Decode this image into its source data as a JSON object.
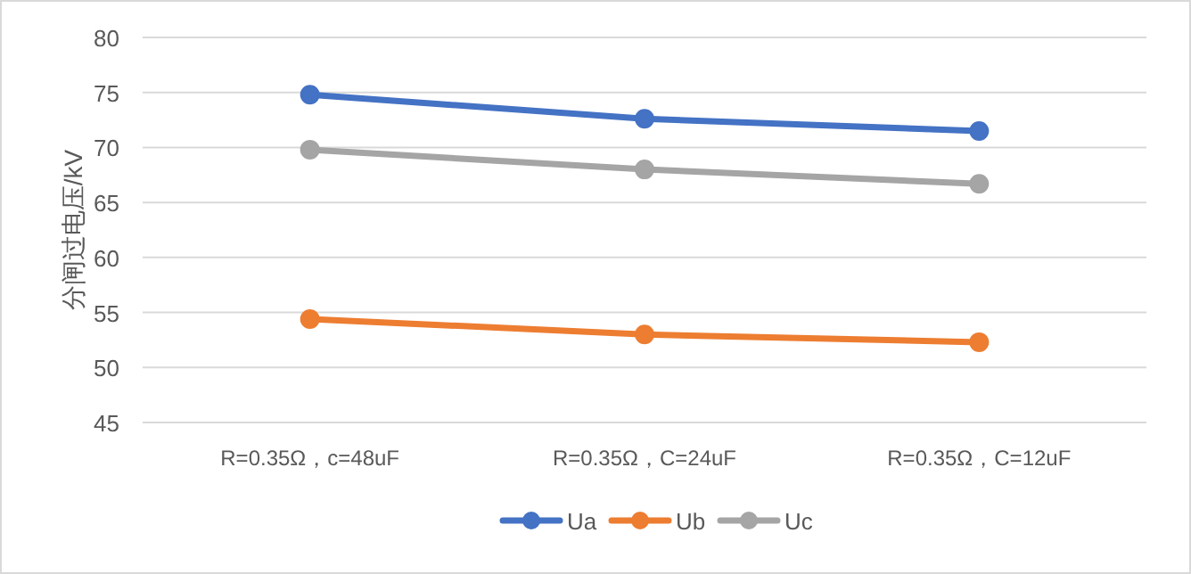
{
  "chart_data": {
    "type": "line",
    "ylabel": "分闸过电压/kV",
    "categories": [
      "R=0.35Ω，c=48uF",
      "R=0.35Ω，C=24uF",
      "R=0.35Ω，C=12uF"
    ],
    "series": [
      {
        "name": "Ua",
        "color": "#4472c4",
        "values": [
          74.8,
          72.6,
          71.5
        ]
      },
      {
        "name": "Ub",
        "color": "#ed7d31",
        "values": [
          54.4,
          53.0,
          52.3
        ]
      },
      {
        "name": "Uc",
        "color": "#a5a5a5",
        "values": [
          69.8,
          68.0,
          66.7
        ]
      }
    ],
    "ylim": [
      45,
      80
    ],
    "yticks": [
      45,
      50,
      55,
      60,
      65,
      70,
      75,
      80
    ],
    "grid": "y",
    "legend": "bottom",
    "marker": "circle",
    "line_style": "solid"
  }
}
